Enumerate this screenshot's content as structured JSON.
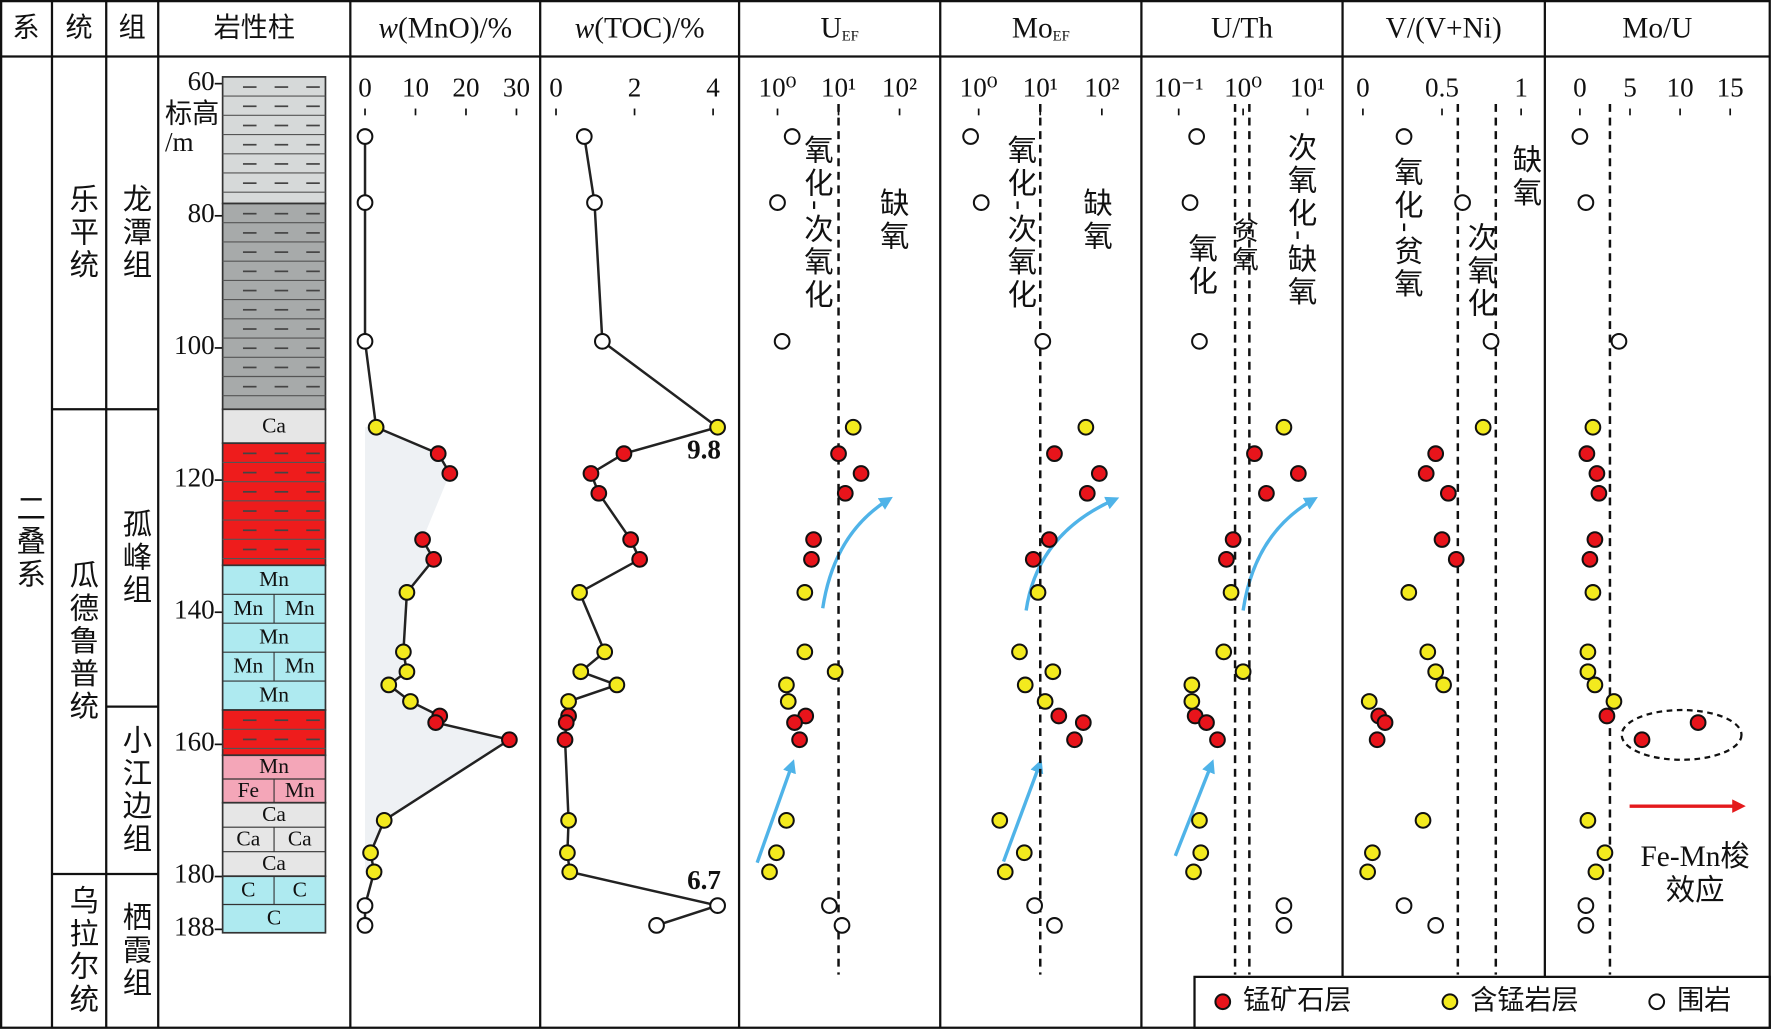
{
  "header": {
    "system": "系",
    "series": "统",
    "formation": "组",
    "lithology": "岩性柱"
  },
  "strata": {
    "system": [
      "二叠系"
    ],
    "series": [
      "乐平统",
      "瓜德鲁普统",
      "乌拉尔统"
    ],
    "formation": [
      "龙潭组",
      "孤峰组",
      "小江边组",
      "栖霞组"
    ]
  },
  "lithology": [
    {
      "color": "#d6d9d9"
    },
    {
      "color": "#a7aaaa"
    },
    {
      "color": "#e6e6e6",
      "rows": [
        [
          "Ca"
        ]
      ]
    },
    {
      "color": "#ee1c1c"
    },
    {
      "color": "#aeeaf0",
      "rows": [
        [
          "Mn"
        ],
        [
          "Mn",
          "Mn"
        ],
        [
          "Mn"
        ],
        [
          "Mn",
          "Mn"
        ],
        [
          "Mn"
        ]
      ]
    },
    {
      "color": "#ee1c1c"
    },
    {
      "color": "#f4a6b8",
      "rows": [
        [
          "Mn"
        ],
        [
          "Fe",
          "Mn"
        ]
      ]
    },
    {
      "color": "#e6e6e6",
      "rows": [
        [
          "Ca"
        ],
        [
          "Ca",
          "Ca"
        ],
        [
          "Ca"
        ]
      ]
    },
    {
      "color": "#aeeaf0",
      "rows": [
        [
          "C",
          "C"
        ],
        [
          "C"
        ]
      ]
    }
  ],
  "depth_axis": {
    "label_lines": [
      "标高",
      "/m"
    ],
    "ylim": [
      60,
      188
    ],
    "yticks": [
      60,
      80,
      100,
      120,
      140,
      160,
      180,
      188
    ],
    "values": [
      68,
      78,
      99,
      112,
      116,
      119,
      122,
      129,
      132,
      137,
      146,
      149,
      151,
      153.5,
      155.7,
      156.7,
      159.3,
      171.5,
      176.4,
      179.3,
      184.4,
      187.4
    ]
  },
  "samples": {
    "class": [
      "围岩",
      "围岩",
      "围岩",
      "含锰岩层",
      "锰矿石层",
      "锰矿石层",
      "锰矿石层",
      "锰矿石层",
      "锰矿石层",
      "含锰岩层",
      "含锰岩层",
      "含锰岩层",
      "含锰岩层",
      "含锰岩层",
      "锰矿石层",
      "锰矿石层",
      "锰矿石层",
      "含锰岩层",
      "含锰岩层",
      "含锰岩层",
      "围岩",
      "围岩"
    ]
  },
  "legend": {
    "items": [
      {
        "name": "锰矿石层",
        "color": "#e8141b"
      },
      {
        "name": "含锰岩层",
        "color": "#f3ea1e"
      },
      {
        "name": "围岩",
        "color": "#ffffff"
      }
    ]
  },
  "chart_data": [
    {
      "type": "scatter",
      "title_italic": "w",
      "title": "(MnO)/%",
      "line": true,
      "xlim": [
        0,
        30
      ],
      "xticks": [
        0,
        10,
        20,
        30
      ],
      "values": [
        0,
        0,
        0,
        2.2,
        14.5,
        16.8,
        null,
        11.4,
        13.6,
        8.3,
        7.6,
        8.3,
        4.7,
        9,
        14.8,
        14,
        28.6,
        3.8,
        1.1,
        1.8,
        0,
        0
      ]
    },
    {
      "type": "scatter",
      "title_italic": "w",
      "title": "(TOC)/%",
      "line": true,
      "xlim": [
        0,
        4
      ],
      "xticks": [
        0,
        2,
        4
      ],
      "values": [
        0.72,
        0.98,
        1.18,
        9.8,
        1.73,
        0.89,
        1.09,
        1.9,
        2.13,
        0.6,
        1.24,
        0.63,
        1.55,
        0.32,
        0.32,
        0.26,
        0.23,
        0.32,
        0.29,
        0.35,
        6.7,
        2.56
      ],
      "value_labels": [
        null,
        null,
        null,
        "9.8",
        null,
        null,
        null,
        null,
        null,
        null,
        null,
        null,
        null,
        null,
        null,
        null,
        null,
        null,
        null,
        null,
        "6.7",
        null
      ]
    },
    {
      "type": "scatter",
      "title": "U",
      "title_sub": "EF",
      "xlog": true,
      "xlim": [
        1,
        100
      ],
      "xticks": [
        {
          "value": 1,
          "label": "10⁰"
        },
        {
          "value": 10,
          "label": "10¹"
        },
        {
          "value": 100,
          "label": "10²"
        }
      ],
      "thresholds": [
        10
      ],
      "zones": [
        "氧化-次氧化",
        "缺氧"
      ],
      "values": [
        1.74,
        1,
        1.19,
        17.4,
        10,
        23.4,
        12.9,
        3.9,
        3.6,
        2.8,
        2.8,
        8.8,
        1.4,
        1.5,
        2.9,
        1.9,
        2.3,
        1.4,
        0.96,
        0.74,
        7.1,
        11.4
      ]
    },
    {
      "type": "scatter",
      "title": "Mo",
      "title_sub": "EF",
      "xlog": true,
      "xlim": [
        1,
        100
      ],
      "xticks": [
        {
          "value": 1,
          "label": "10⁰"
        },
        {
          "value": 10,
          "label": "10¹"
        },
        {
          "value": 100,
          "label": "10²"
        }
      ],
      "thresholds": [
        10
      ],
      "zones": [
        "氧化-次氧化",
        "缺氧"
      ],
      "values": [
        0.74,
        1.1,
        11,
        55,
        17,
        91,
        58,
        14,
        7.7,
        9.2,
        4.6,
        16,
        5.7,
        12,
        20,
        50,
        36,
        2.2,
        5.5,
        2.7,
        8.1,
        17
      ]
    },
    {
      "type": "scatter",
      "title": "U/Th",
      "xlog": true,
      "xlim": [
        0.1,
        10
      ],
      "xticks": [
        {
          "value": 0.1,
          "label": "10⁻¹"
        },
        {
          "value": 1,
          "label": "10⁰"
        },
        {
          "value": 10,
          "label": "10¹"
        }
      ],
      "thresholds": [
        0.75,
        1.25
      ],
      "zones": [
        "氧化",
        "贫氧",
        "次氧化-缺氧"
      ],
      "values": [
        0.19,
        0.15,
        0.21,
        4.3,
        1.5,
        7.2,
        2.3,
        0.7,
        0.55,
        0.65,
        0.5,
        1,
        0.16,
        0.16,
        0.18,
        0.27,
        0.4,
        0.21,
        0.22,
        0.17,
        4.3,
        4.3
      ]
    },
    {
      "type": "scatter",
      "title": "V/(V+Ni)",
      "xlim": [
        0,
        1
      ],
      "xticks": [
        0,
        0.5,
        1
      ],
      "thresholds": [
        0.6,
        0.84
      ],
      "zones": [
        "氧化-贫氧",
        "次氧化",
        "缺氧"
      ],
      "values": [
        0.26,
        0.63,
        0.81,
        0.76,
        0.46,
        0.4,
        0.54,
        0.5,
        0.59,
        0.29,
        0.41,
        0.46,
        0.51,
        0.04,
        0.1,
        0.14,
        0.09,
        0.38,
        0.06,
        0.03,
        0.26,
        0.46
      ]
    },
    {
      "type": "scatter",
      "title": "Mo/U",
      "xlim": [
        0,
        15
      ],
      "xticks": [
        0,
        5,
        10,
        15
      ],
      "thresholds": [
        3
      ],
      "annotation_lines": [
        "Fe-Mn梭",
        "效应"
      ],
      "values": [
        0,
        0.6,
        3.9,
        1.3,
        0.7,
        1.7,
        1.9,
        1.5,
        1,
        1.3,
        0.8,
        0.8,
        1.5,
        3.4,
        2.7,
        11.8,
        6.2,
        0.8,
        2.5,
        1.6,
        0.6,
        0.6
      ]
    }
  ]
}
